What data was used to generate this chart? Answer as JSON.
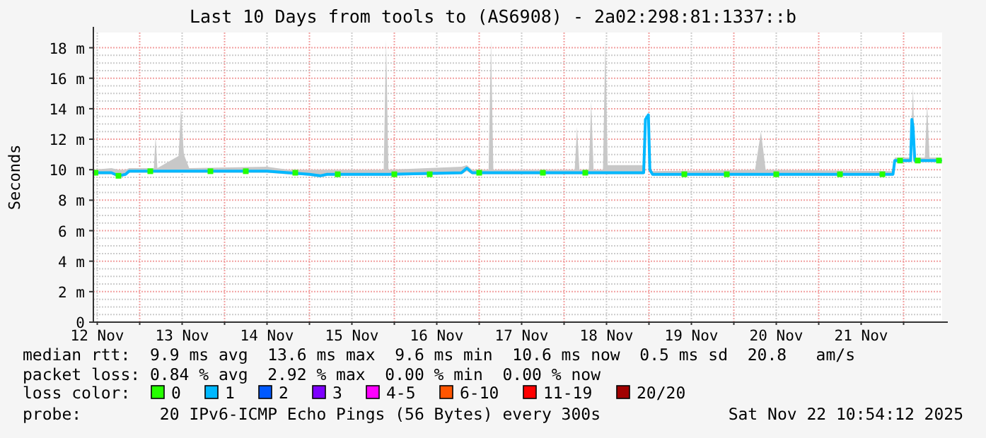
{
  "chart_data": {
    "type": "line",
    "title": "Last 10 Days from tools to (AS6908) - 2a02:298:81:1337::b",
    "ylabel": "Seconds",
    "xlim": [
      "2025-11-12T10:54",
      "2025-11-22T10:54"
    ],
    "xticks": [
      {
        "value": "2025-11-12T12:00",
        "label": "12 Nov"
      },
      {
        "value": "2025-11-13T00:00",
        "label": null
      },
      {
        "value": "2025-11-13T12:00",
        "label": "13 Nov"
      },
      {
        "value": "2025-11-14T00:00",
        "label": null
      },
      {
        "value": "2025-11-14T12:00",
        "label": "14 Nov"
      },
      {
        "value": "2025-11-15T00:00",
        "label": null
      },
      {
        "value": "2025-11-15T12:00",
        "label": "15 Nov"
      },
      {
        "value": "2025-11-16T00:00",
        "label": null
      },
      {
        "value": "2025-11-16T12:00",
        "label": "16 Nov"
      },
      {
        "value": "2025-11-17T00:00",
        "label": null
      },
      {
        "value": "2025-11-17T12:00",
        "label": "17 Nov"
      },
      {
        "value": "2025-11-18T00:00",
        "label": null
      },
      {
        "value": "2025-11-18T12:00",
        "label": "18 Nov"
      },
      {
        "value": "2025-11-19T00:00",
        "label": null
      },
      {
        "value": "2025-11-19T12:00",
        "label": "19 Nov"
      },
      {
        "value": "2025-11-20T00:00",
        "label": null
      },
      {
        "value": "2025-11-20T12:00",
        "label": "20 Nov"
      },
      {
        "value": "2025-11-21T00:00",
        "label": null
      },
      {
        "value": "2025-11-21T12:00",
        "label": "21 Nov"
      },
      {
        "value": "2025-11-22T00:00",
        "label": null
      }
    ],
    "ylim": [
      0,
      19
    ],
    "yticks": [
      {
        "value": 0,
        "label": "0"
      },
      {
        "value": 2,
        "label": "2 m"
      },
      {
        "value": 4,
        "label": "4 m"
      },
      {
        "value": 6,
        "label": "6 m"
      },
      {
        "value": 8,
        "label": "8 m"
      },
      {
        "value": 10,
        "label": "10 m"
      },
      {
        "value": 12,
        "label": "12 m"
      },
      {
        "value": 14,
        "label": "14 m"
      },
      {
        "value": 16,
        "label": "16 m"
      },
      {
        "value": 18,
        "label": "18 m"
      }
    ],
    "grid": true,
    "legend": "bottom",
    "legend_title": "loss color:",
    "series": [
      {
        "name": "0",
        "type": "scatter",
        "marker": "square",
        "color": "#26ff00",
        "x": [
          "2025-11-12T11:30",
          "2025-11-12T18:00",
          "2025-11-13T03:00",
          "2025-11-13T20:00",
          "2025-11-14T06:00",
          "2025-11-14T20:00",
          "2025-11-15T08:00",
          "2025-11-16T00:00",
          "2025-11-16T10:00",
          "2025-11-17T00:00",
          "2025-11-17T18:00",
          "2025-11-18T06:00",
          "2025-11-19T10:00",
          "2025-11-19T22:00",
          "2025-11-20T12:00",
          "2025-11-21T06:00",
          "2025-11-21T18:00",
          "2025-11-21T23:00",
          "2025-11-22T04:00",
          "2025-11-22T10:00"
        ],
        "values": [
          9.8,
          9.6,
          9.9,
          9.9,
          9.9,
          9.8,
          9.7,
          9.7,
          9.7,
          9.8,
          9.8,
          9.8,
          9.7,
          9.7,
          9.7,
          9.7,
          9.7,
          10.6,
          10.6,
          10.6
        ]
      },
      {
        "name": "1",
        "color": "#00b8ff",
        "x": [
          "2025-11-12T11:00",
          "2025-11-12T16:00",
          "2025-11-12T18:00",
          "2025-11-12T20:00",
          "2025-11-12T21:00",
          "2025-11-13T04:00",
          "2025-11-13T04:30",
          "2025-11-13T05:00",
          "2025-11-13T11:00",
          "2025-11-13T11:40",
          "2025-11-13T12:30",
          "2025-11-13T14:00",
          "2025-11-14T12:00",
          "2025-11-14T18:00",
          "2025-11-15T00:00",
          "2025-11-15T03:00",
          "2025-11-15T05:00",
          "2025-11-15T21:00",
          "2025-11-15T21:40",
          "2025-11-15T22:20",
          "2025-11-16T19:00",
          "2025-11-16T20:30",
          "2025-11-16T22:00",
          "2025-11-17T02:40",
          "2025-11-17T03:20",
          "2025-11-17T04:00",
          "2025-11-18T03:00",
          "2025-11-18T03:40",
          "2025-11-18T04:20",
          "2025-11-18T07:00",
          "2025-11-18T07:40",
          "2025-11-18T08:20",
          "2025-11-18T11:00",
          "2025-11-18T11:40",
          "2025-11-18T12:20",
          "2025-11-18T22:30",
          "2025-11-18T23:00",
          "2025-11-18T23:50",
          "2025-11-19T00:15",
          "2025-11-19T01:00",
          "2025-11-20T06:00",
          "2025-11-20T07:40",
          "2025-11-20T09:00",
          "2025-11-21T21:00",
          "2025-11-21T21:30",
          "2025-11-22T02:00",
          "2025-11-22T02:20",
          "2025-11-22T02:40",
          "2025-11-22T03:10",
          "2025-11-22T06:00",
          "2025-11-22T06:40",
          "2025-11-22T07:20",
          "2025-11-22T10:30"
        ],
        "values": [
          9.8,
          9.8,
          9.6,
          9.7,
          9.9,
          9.9,
          9.9,
          9.9,
          9.9,
          9.9,
          9.9,
          9.9,
          9.9,
          9.8,
          9.7,
          9.6,
          9.7,
          9.7,
          9.7,
          9.7,
          9.8,
          10.1,
          9.8,
          9.8,
          9.8,
          9.8,
          9.8,
          9.8,
          9.8,
          9.8,
          9.8,
          9.8,
          9.8,
          9.8,
          9.8,
          9.8,
          13.3,
          13.6,
          10.0,
          9.7,
          9.7,
          9.7,
          9.7,
          9.7,
          10.6,
          10.6,
          13.3,
          12.8,
          10.6,
          10.6,
          10.6,
          10.6,
          10.6
        ],
        "lower": [
          9.7,
          9.7,
          9.5,
          9.6,
          9.8,
          9.8,
          9.8,
          9.8,
          9.8,
          9.8,
          9.8,
          9.8,
          9.8,
          9.7,
          9.6,
          9.5,
          9.6,
          9.6,
          9.6,
          9.6,
          9.7,
          9.9,
          9.7,
          9.7,
          9.7,
          9.7,
          9.7,
          9.7,
          9.7,
          9.7,
          9.7,
          9.7,
          9.7,
          9.7,
          9.7,
          9.7,
          13.2,
          13.5,
          9.9,
          9.6,
          9.6,
          9.6,
          9.6,
          9.6,
          10.5,
          10.5,
          13.2,
          12.7,
          10.5,
          10.5,
          10.5,
          10.5,
          10.5
        ],
        "upper": [
          10.0,
          10.1,
          10.0,
          10.0,
          10.1,
          10.1,
          12.2,
          10.1,
          10.9,
          14.0,
          11.0,
          10.1,
          10.2,
          10.0,
          10.0,
          10.0,
          10.0,
          10.0,
          18.5,
          10.0,
          10.2,
          10.3,
          10.0,
          10.0,
          18.5,
          10.0,
          10.0,
          12.8,
          10.0,
          10.0,
          14.5,
          10.0,
          10.0,
          18.5,
          10.3,
          10.3,
          13.4,
          13.7,
          10.1,
          9.9,
          10.0,
          12.5,
          10.0,
          9.9,
          10.8,
          10.8,
          13.5,
          15.4,
          10.8,
          10.8,
          14.3,
          10.8,
          10.8
        ]
      },
      {
        "name": "2",
        "color": "#0059ff"
      },
      {
        "name": "3",
        "color": "#7e00ff"
      },
      {
        "name": "4-5",
        "color": "#ff00ff"
      },
      {
        "name": "6-10",
        "color": "#ff5500"
      },
      {
        "name": "11-19",
        "color": "#ff0000"
      },
      {
        "name": "20/20",
        "color": "#a10000"
      }
    ],
    "annotations": [
      "median rtt:  9.9 ms avg  13.6 ms max  9.6 ms min  10.6 ms now  0.5 ms sd  20.8   am/s",
      "packet loss: 0.84 % avg  2.92 % max  0.00 % min  0.00 % now",
      "probe:        20 IPv6-ICMP Echo Pings (56 Bytes) every 300s",
      "Sat Nov 22 10:54:12 2025"
    ]
  }
}
